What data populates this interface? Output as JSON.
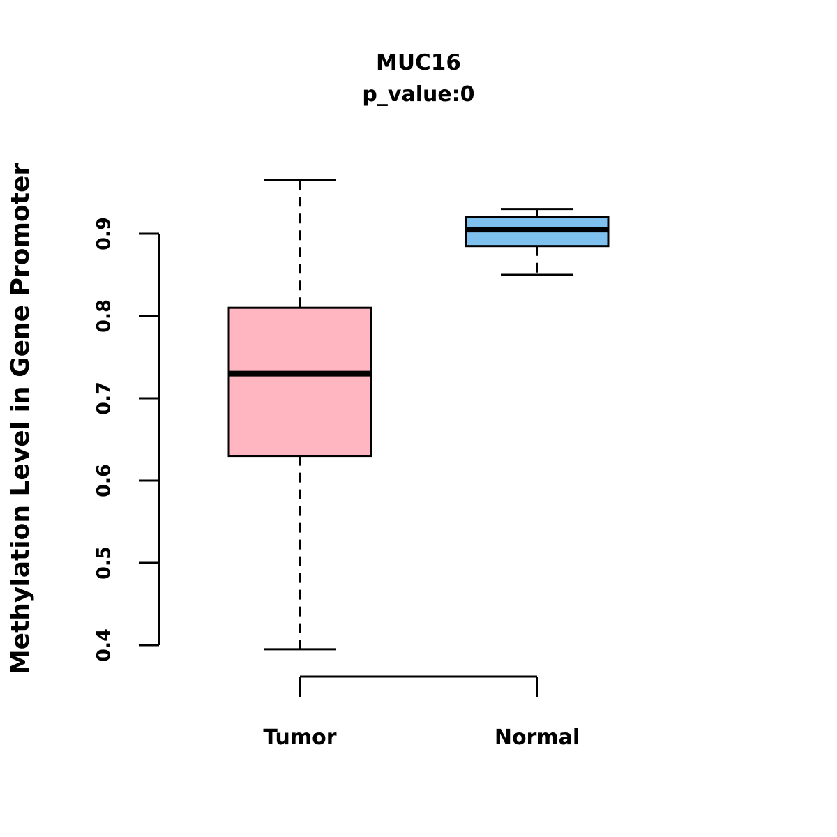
{
  "chart_data": {
    "type": "boxplot",
    "title": "MUC16",
    "subtitle": "p_value:0",
    "ylabel": "Methylation Level in Gene Promoter",
    "xlabel": "",
    "categories": [
      "Tumor",
      "Normal"
    ],
    "yticks": [
      0.4,
      0.5,
      0.6,
      0.7,
      0.8,
      0.9
    ],
    "ylim": [
      0.37,
      0.97
    ],
    "grid": false,
    "legend": "none",
    "series": [
      {
        "name": "Tumor",
        "min": 0.395,
        "q1": 0.63,
        "median": 0.73,
        "q3": 0.81,
        "max": 0.965,
        "color": "#FFB6C1"
      },
      {
        "name": "Normal",
        "min": 0.85,
        "q1": 0.885,
        "median": 0.905,
        "q3": 0.92,
        "max": 0.93,
        "color": "#7EC0EE"
      }
    ],
    "colors": {
      "tumor_box": "#FFB6C1",
      "normal_box": "#7EC0EE",
      "stroke": "#000000",
      "background": "#FFFFFF"
    }
  }
}
